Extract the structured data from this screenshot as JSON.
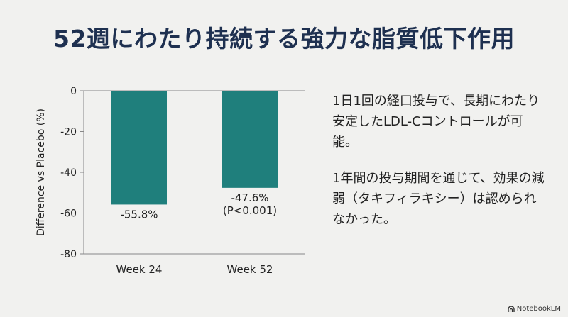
{
  "page": {
    "title": "52週にわたり持続する強力な脂質低下作用",
    "paragraphs": [
      "1日1回の経口投与で、長期にわたり安定したLDL-Cコントロールが可能。",
      "1年間の投与期間を通じて、効果の減弱（タキフィラキシー）は認められなかった。"
    ],
    "brand": "NotebookLM"
  },
  "colors": {
    "bar": "#1f7f7c",
    "title": "#1e3050",
    "background": "#f1f1ef"
  },
  "chart_data": {
    "type": "bar",
    "categories": [
      "Week 24",
      "Week 52"
    ],
    "values": [
      -55.8,
      -47.6
    ],
    "bar_labels": [
      [
        "-55.8%"
      ],
      [
        "-47.6%",
        "(P<0.001)"
      ]
    ],
    "ylabel": "Difference vs Placebo (%)",
    "xlabel": "",
    "ylim": [
      -80,
      0
    ],
    "yticks": [
      0,
      -20,
      -40,
      -60,
      -80
    ],
    "grid": false
  }
}
